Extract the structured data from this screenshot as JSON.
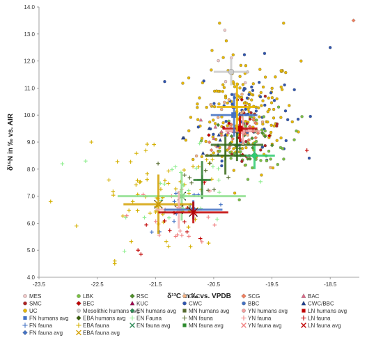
{
  "chart_data": {
    "type": "scatter",
    "xlabel": "δ¹³C in ‰ vs. VPDB",
    "ylabel": "δ¹⁵N in ‰ vs. AIR",
    "xlim": [
      -23.5,
      -18.0
    ],
    "ylim": [
      4.0,
      14.0
    ],
    "xticks": [
      "-23.5",
      "-22.5",
      "-21.5",
      "-20.5",
      "-19.5",
      "-18.5"
    ],
    "yticks": [
      "4.0",
      "5.0",
      "6.0",
      "7.0",
      "8.0",
      "9.0",
      "10.0",
      "11.0",
      "12.0",
      "13.0",
      "14.0"
    ],
    "grid": false,
    "legend_position": "bottom",
    "legend": [
      {
        "label": "MES",
        "marker": "circle",
        "color": "#f2c9c9"
      },
      {
        "label": "LBK",
        "marker": "circle",
        "color": "#7ac043"
      },
      {
        "label": "RSC",
        "marker": "diamond",
        "color": "#4f8f2a"
      },
      {
        "label": "GLC",
        "marker": "circle",
        "color": "#f4b183"
      },
      {
        "label": "SCG",
        "marker": "diamond",
        "color": "#f08060"
      },
      {
        "label": "BAC",
        "marker": "triangle",
        "color": "#e06a8a"
      },
      {
        "label": "SMC",
        "marker": "circle",
        "color": "#b22222"
      },
      {
        "label": "BEC",
        "marker": "diamond",
        "color": "#c00000"
      },
      {
        "label": "KUC",
        "marker": "triangle",
        "color": "#a00050"
      },
      {
        "label": "CWC",
        "marker": "circle",
        "color": "#2f55b0"
      },
      {
        "label": "BBC",
        "marker": "circle",
        "color": "#4472c4"
      },
      {
        "label": "CWC/BBC",
        "marker": "triangle",
        "color": "#1f3f90"
      },
      {
        "label": "UC",
        "marker": "circle",
        "color": "#e8b800"
      },
      {
        "label": "Mesolithic humans avg",
        "marker": "circle",
        "color": "#cccccc"
      },
      {
        "label": "EN humans avg",
        "marker": "diamond",
        "color": "#2e8b57"
      },
      {
        "label": "MN humans avg",
        "marker": "square",
        "color": "#556b2f"
      },
      {
        "label": "YN humans avg",
        "marker": "circle",
        "color": "#f4a0a0"
      },
      {
        "label": "LN humans avg",
        "marker": "square",
        "color": "#c00000"
      },
      {
        "label": "FN humans avg",
        "marker": "square",
        "color": "#4472c4"
      },
      {
        "label": "EBA humans avg",
        "marker": "diamond",
        "color": "#3a5f0b"
      },
      {
        "label": "EN Fauna",
        "marker": "plus",
        "color": "#90ee90"
      },
      {
        "label": "MN fauna",
        "marker": "plus",
        "color": "#556b2f"
      },
      {
        "label": "YN fauna",
        "marker": "plus",
        "color": "#f08080"
      },
      {
        "label": "LN fauna",
        "marker": "plus",
        "color": "#c00000"
      },
      {
        "label": "FN fauna",
        "marker": "plus",
        "color": "#4472c4"
      },
      {
        "label": "EBA fauna",
        "marker": "plus",
        "color": "#d4b000"
      },
      {
        "label": "EN fauna avg",
        "marker": "x",
        "color": "#2e8b57"
      },
      {
        "label": "MN fauna avg",
        "marker": "square",
        "color": "#2e8b2e"
      },
      {
        "label": "YN fauna avg",
        "marker": "x",
        "color": "#f08080"
      },
      {
        "label": "LN fauna avg",
        "marker": "x",
        "color": "#c00000"
      },
      {
        "label": "FN fauna avg",
        "marker": "diamond",
        "color": "#4472c4"
      },
      {
        "label": "EBA fauna avg",
        "marker": "x",
        "color": "#d4a000"
      }
    ],
    "averages": [
      {
        "name": "Mesolithic humans avg",
        "x": -20.2,
        "y": 11.6,
        "xerr": 0.3,
        "yerr": 0.5,
        "color": "#cccccc",
        "marker": "circle"
      },
      {
        "name": "EN humans avg",
        "x": -19.8,
        "y": 8.5,
        "xerr": 0.35,
        "yerr": 0.5,
        "color": "#2ecc71",
        "marker": "diamond"
      },
      {
        "name": "MN humans avg",
        "x": -20.3,
        "y": 8.5,
        "xerr": 0.35,
        "yerr": 0.7,
        "color": "#3a6b1a",
        "marker": "plus"
      },
      {
        "name": "EBA humans avg",
        "x": -20.1,
        "y": 8.9,
        "xerr": 0.45,
        "yerr": 0.6,
        "color": "#33691e",
        "marker": "plus"
      },
      {
        "name": "YN humans avg",
        "x": -20.0,
        "y": 9.4,
        "xerr": 0.3,
        "yerr": 0.5,
        "color": "#f4a0a0",
        "marker": "circle"
      },
      {
        "name": "LN humans avg",
        "x": -20.05,
        "y": 9.5,
        "xerr": 0.3,
        "yerr": 0.5,
        "color": "#c00000",
        "marker": "square"
      },
      {
        "name": "FN humans avg",
        "x": -20.15,
        "y": 10.0,
        "xerr": 0.4,
        "yerr": 0.8,
        "color": "#4472c4",
        "marker": "square"
      },
      {
        "name": "EBA humans avg (gold)",
        "x": -20.1,
        "y": 10.3,
        "xerr": 0.35,
        "yerr": 0.9,
        "color": "#e8b800",
        "marker": "plus"
      },
      {
        "name": "MN fauna avg",
        "x": -20.7,
        "y": 7.6,
        "xerr": 0.15,
        "yerr": 0.7,
        "color": "#2e7d32",
        "marker": "plus"
      },
      {
        "name": "EN fauna avg",
        "x": -21.05,
        "y": 7.0,
        "xerr": 1.1,
        "yerr": 0.9,
        "color": "#8fe08f",
        "marker": "x"
      },
      {
        "name": "EBA fauna avg",
        "x": -21.45,
        "y": 6.7,
        "xerr": 0.6,
        "yerr": 1.1,
        "color": "#d4a000",
        "marker": "x"
      },
      {
        "name": "YN fauna avg",
        "x": -21.1,
        "y": 6.5,
        "xerr": 0.4,
        "yerr": 0.7,
        "color": "#f4b4b4",
        "marker": "x"
      },
      {
        "name": "FN fauna avg",
        "x": -20.85,
        "y": 6.5,
        "xerr": 0.5,
        "yerr": 0.35,
        "color": "#4472c4",
        "marker": "diamond"
      },
      {
        "name": "LN fauna avg",
        "x": -20.85,
        "y": 6.4,
        "xerr": 0.6,
        "yerr": 0.4,
        "color": "#c00000",
        "marker": "x"
      }
    ],
    "scatter_clusters": [
      {
        "series": "UC",
        "color": "#e8b800",
        "marker": "circle",
        "cx": -20.0,
        "cy": 10.0,
        "sx": 0.45,
        "sy": 1.1,
        "n": 170
      },
      {
        "series": "CWC",
        "color": "#2f55b0",
        "marker": "circle",
        "cx": -19.95,
        "cy": 10.2,
        "sx": 0.4,
        "sy": 0.9,
        "n": 55
      },
      {
        "series": "LBK",
        "color": "#7ac043",
        "marker": "circle",
        "cx": -19.7,
        "cy": 8.9,
        "sx": 0.35,
        "sy": 0.6,
        "n": 40
      },
      {
        "series": "RSC",
        "color": "#4f8f2a",
        "marker": "diamond",
        "cx": -19.9,
        "cy": 9.0,
        "sx": 0.3,
        "sy": 0.5,
        "n": 15
      },
      {
        "series": "SMC",
        "color": "#b22222",
        "marker": "circle",
        "cx": -19.9,
        "cy": 9.6,
        "sx": 0.3,
        "sy": 0.5,
        "n": 20
      },
      {
        "series": "BEC",
        "color": "#c00000",
        "marker": "diamond",
        "cx": -20.1,
        "cy": 9.4,
        "sx": 0.3,
        "sy": 0.5,
        "n": 12
      },
      {
        "series": "GLC",
        "color": "#f4b183",
        "marker": "circle",
        "cx": -20.2,
        "cy": 9.6,
        "sx": 0.3,
        "sy": 0.6,
        "n": 18
      },
      {
        "series": "SCG",
        "color": "#f08060",
        "marker": "diamond",
        "cx": -20.1,
        "cy": 9.3,
        "sx": 0.3,
        "sy": 0.5,
        "n": 15
      },
      {
        "series": "BAC",
        "color": "#e06a8a",
        "marker": "triangle",
        "cx": -20.3,
        "cy": 9.4,
        "sx": 0.3,
        "sy": 0.5,
        "n": 10
      },
      {
        "series": "CWC/BBC",
        "color": "#1f3f90",
        "marker": "triangle",
        "cx": -20.4,
        "cy": 9.2,
        "sx": 0.3,
        "sy": 0.6,
        "n": 10
      },
      {
        "series": "MES",
        "color": "#f2c9c9",
        "marker": "circle",
        "cx": -20.2,
        "cy": 11.5,
        "sx": 0.25,
        "sy": 0.5,
        "n": 6
      },
      {
        "series": "EBA fauna",
        "color": "#d4b000",
        "marker": "plus",
        "cx": -21.4,
        "cy": 6.8,
        "sx": 0.55,
        "sy": 1.0,
        "n": 60
      },
      {
        "series": "EN Fauna",
        "color": "#90ee90",
        "marker": "plus",
        "cx": -20.9,
        "cy": 7.0,
        "sx": 0.5,
        "sy": 0.8,
        "n": 25
      },
      {
        "series": "MN fauna",
        "color": "#556b2f",
        "marker": "plus",
        "cx": -20.6,
        "cy": 7.6,
        "sx": 0.3,
        "sy": 0.6,
        "n": 10
      },
      {
        "series": "YN fauna",
        "color": "#f08080",
        "marker": "plus",
        "cx": -21.1,
        "cy": 6.4,
        "sx": 0.4,
        "sy": 0.6,
        "n": 20
      },
      {
        "series": "LN fauna",
        "color": "#c00000",
        "marker": "plus",
        "cx": -20.9,
        "cy": 6.3,
        "sx": 0.4,
        "sy": 0.5,
        "n": 10
      },
      {
        "series": "FN fauna",
        "color": "#4472c4",
        "marker": "plus",
        "cx": -20.9,
        "cy": 6.5,
        "sx": 0.4,
        "sy": 0.4,
        "n": 10
      }
    ],
    "outliers": [
      {
        "series": "SCG",
        "x": -18.1,
        "y": 13.5,
        "color": "#f08060",
        "marker": "diamond"
      },
      {
        "series": "CWC",
        "x": -18.5,
        "y": 12.5,
        "color": "#2f55b0",
        "marker": "circle"
      },
      {
        "series": "UC",
        "x": -19.3,
        "y": 13.4,
        "color": "#e8b800",
        "marker": "circle"
      },
      {
        "series": "UC",
        "x": -19.0,
        "y": 12.0,
        "color": "#e8b800",
        "marker": "circle"
      },
      {
        "series": "UC",
        "x": -20.4,
        "y": 13.4,
        "color": "#e8b800",
        "marker": "circle"
      },
      {
        "series": "EBA fauna",
        "x": -23.3,
        "y": 6.8,
        "color": "#d4b000",
        "marker": "plus"
      },
      {
        "series": "EN Fauna",
        "x": -23.1,
        "y": 8.2,
        "color": "#90ee90",
        "marker": "plus"
      },
      {
        "series": "EN Fauna",
        "x": -22.7,
        "y": 8.3,
        "color": "#90ee90",
        "marker": "plus"
      },
      {
        "series": "EBA fauna",
        "x": -22.6,
        "y": 9.0,
        "color": "#d4b000",
        "marker": "plus"
      },
      {
        "series": "EBA fauna",
        "x": -22.3,
        "y": 7.6,
        "color": "#d4b000",
        "marker": "plus"
      },
      {
        "series": "EBA fauna",
        "x": -22.2,
        "y": 4.5,
        "color": "#d4b000",
        "marker": "plus"
      },
      {
        "series": "EBA fauna",
        "x": -22.2,
        "y": 4.6,
        "color": "#d4b000",
        "marker": "plus"
      },
      {
        "series": "LN fauna",
        "x": -21.8,
        "y": 5.0,
        "color": "#c00000",
        "marker": "plus"
      },
      {
        "series": "LN fauna",
        "x": -21.75,
        "y": 4.85,
        "color": "#c00000",
        "marker": "plus"
      },
      {
        "series": "LN fauna",
        "x": -18.9,
        "y": 8.7,
        "color": "#c00000",
        "marker": "plus"
      }
    ]
  }
}
